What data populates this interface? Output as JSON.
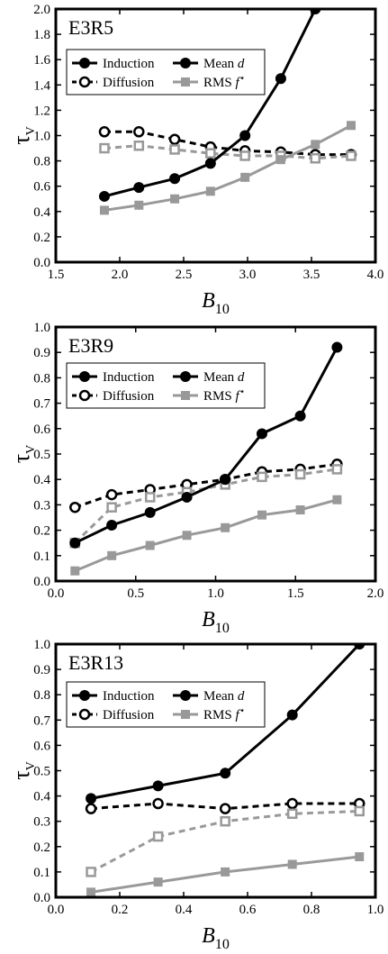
{
  "legend_labels": {
    "induction": "Induction",
    "diffusion": "Diffusion",
    "mean_d": "Mean",
    "mean_d_symbol": "d",
    "rms": "RMS",
    "rms_symbol": "f",
    "rms_star": "⋆"
  },
  "ylabel_symbol": "τ",
  "ylabel_sub": "V",
  "xlabel_symbol": "B",
  "xlabel_sub": "10",
  "colors": {
    "black": "#000000",
    "gray": "#999999"
  },
  "chart_data": [
    {
      "type": "line",
      "title": "E3R5",
      "xlim": [
        1.5,
        4.0
      ],
      "ylim": [
        0.0,
        2.0
      ],
      "xticks": [
        "1.5",
        "2.0",
        "2.5",
        "3.0",
        "3.5",
        "4.0"
      ],
      "yticks": [
        "0.0",
        "0.2",
        "0.4",
        "0.6",
        "0.8",
        "1.0",
        "1.2",
        "1.4",
        "1.6",
        "1.8",
        "2.0"
      ],
      "series": [
        {
          "name": "Diffusion",
          "color": "#000000",
          "dash": true,
          "marker": "open-circle",
          "x": [
            1.88,
            2.15,
            2.43,
            2.71,
            2.98,
            3.26,
            3.53,
            3.81
          ],
          "y": [
            1.03,
            1.03,
            0.97,
            0.91,
            0.88,
            0.87,
            0.85,
            0.85
          ]
        },
        {
          "color": "#999999",
          "dash": true,
          "marker": "open-square",
          "x": [
            1.88,
            2.15,
            2.43,
            2.71,
            2.98,
            3.26,
            3.53,
            3.81
          ],
          "y": [
            0.9,
            0.92,
            0.89,
            0.86,
            0.84,
            0.84,
            0.82,
            0.84
          ]
        },
        {
          "name": "Induction",
          "color": "#000000",
          "dash": false,
          "marker": "filled-circle",
          "x": [
            1.88,
            2.15,
            2.43,
            2.71,
            2.98,
            3.26,
            3.53
          ],
          "y": [
            0.52,
            0.59,
            0.66,
            0.78,
            1.0,
            1.45,
            2.0
          ]
        },
        {
          "name": "RMS f⋆",
          "color": "#999999",
          "dash": false,
          "marker": "filled-square",
          "x": [
            1.88,
            2.15,
            2.43,
            2.71,
            2.98,
            3.26,
            3.53,
            3.81
          ],
          "y": [
            0.41,
            0.45,
            0.5,
            0.56,
            0.67,
            0.81,
            0.93,
            1.08
          ]
        }
      ]
    },
    {
      "type": "line",
      "title": "E3R9",
      "xlim": [
        0.0,
        2.0
      ],
      "ylim": [
        0.0,
        1.0
      ],
      "xticks": [
        "0.0",
        "0.5",
        "1.0",
        "1.5",
        "2.0"
      ],
      "yticks": [
        "0.0",
        "0.1",
        "0.2",
        "0.3",
        "0.4",
        "0.5",
        "0.6",
        "0.7",
        "0.8",
        "0.9",
        "1.0"
      ],
      "series": [
        {
          "name": "Diffusion",
          "color": "#000000",
          "dash": true,
          "marker": "open-circle",
          "x": [
            0.12,
            0.35,
            0.59,
            0.82,
            1.06,
            1.29,
            1.53,
            1.76
          ],
          "y": [
            0.29,
            0.34,
            0.36,
            0.38,
            0.4,
            0.43,
            0.44,
            0.46
          ]
        },
        {
          "color": "#999999",
          "dash": true,
          "marker": "open-square",
          "x": [
            0.12,
            0.35,
            0.59,
            0.82,
            1.06,
            1.29,
            1.53,
            1.76
          ],
          "y": [
            0.15,
            0.29,
            0.33,
            0.35,
            0.38,
            0.41,
            0.42,
            0.44
          ]
        },
        {
          "name": "Induction",
          "color": "#000000",
          "dash": false,
          "marker": "filled-circle",
          "x": [
            0.12,
            0.35,
            0.59,
            0.82,
            1.06,
            1.29,
            1.53,
            1.76
          ],
          "y": [
            0.15,
            0.22,
            0.27,
            0.33,
            0.4,
            0.58,
            0.65,
            0.92
          ]
        },
        {
          "name": "RMS f⋆",
          "color": "#999999",
          "dash": false,
          "marker": "filled-square",
          "x": [
            0.12,
            0.35,
            0.59,
            0.82,
            1.06,
            1.29,
            1.53,
            1.76
          ],
          "y": [
            0.04,
            0.1,
            0.14,
            0.18,
            0.21,
            0.26,
            0.28,
            0.32
          ]
        }
      ]
    },
    {
      "type": "line",
      "title": "E3R13",
      "xlim": [
        0.0,
        1.0
      ],
      "ylim": [
        0.0,
        1.0
      ],
      "xticks": [
        "0.0",
        "0.2",
        "0.4",
        "0.6",
        "0.8",
        "1.0"
      ],
      "yticks": [
        "0.0",
        "0.1",
        "0.2",
        "0.3",
        "0.4",
        "0.5",
        "0.6",
        "0.7",
        "0.8",
        "0.9",
        "1.0"
      ],
      "series": [
        {
          "name": "Diffusion",
          "color": "#000000",
          "dash": true,
          "marker": "open-circle",
          "x": [
            0.11,
            0.32,
            0.53,
            0.74,
            0.95
          ],
          "y": [
            0.35,
            0.37,
            0.35,
            0.37,
            0.37
          ]
        },
        {
          "color": "#999999",
          "dash": true,
          "marker": "open-square",
          "x": [
            0.11,
            0.32,
            0.53,
            0.74,
            0.95
          ],
          "y": [
            0.1,
            0.24,
            0.3,
            0.33,
            0.34
          ]
        },
        {
          "name": "Induction",
          "color": "#000000",
          "dash": false,
          "marker": "filled-circle",
          "x": [
            0.11,
            0.32,
            0.53,
            0.74,
            0.95
          ],
          "y": [
            0.39,
            0.44,
            0.49,
            0.72,
            1.0
          ]
        },
        {
          "name": "RMS f⋆",
          "color": "#999999",
          "dash": false,
          "marker": "filled-square",
          "x": [
            0.11,
            0.32,
            0.53,
            0.74,
            0.95
          ],
          "y": [
            0.02,
            0.06,
            0.1,
            0.13,
            0.16
          ]
        }
      ]
    }
  ]
}
